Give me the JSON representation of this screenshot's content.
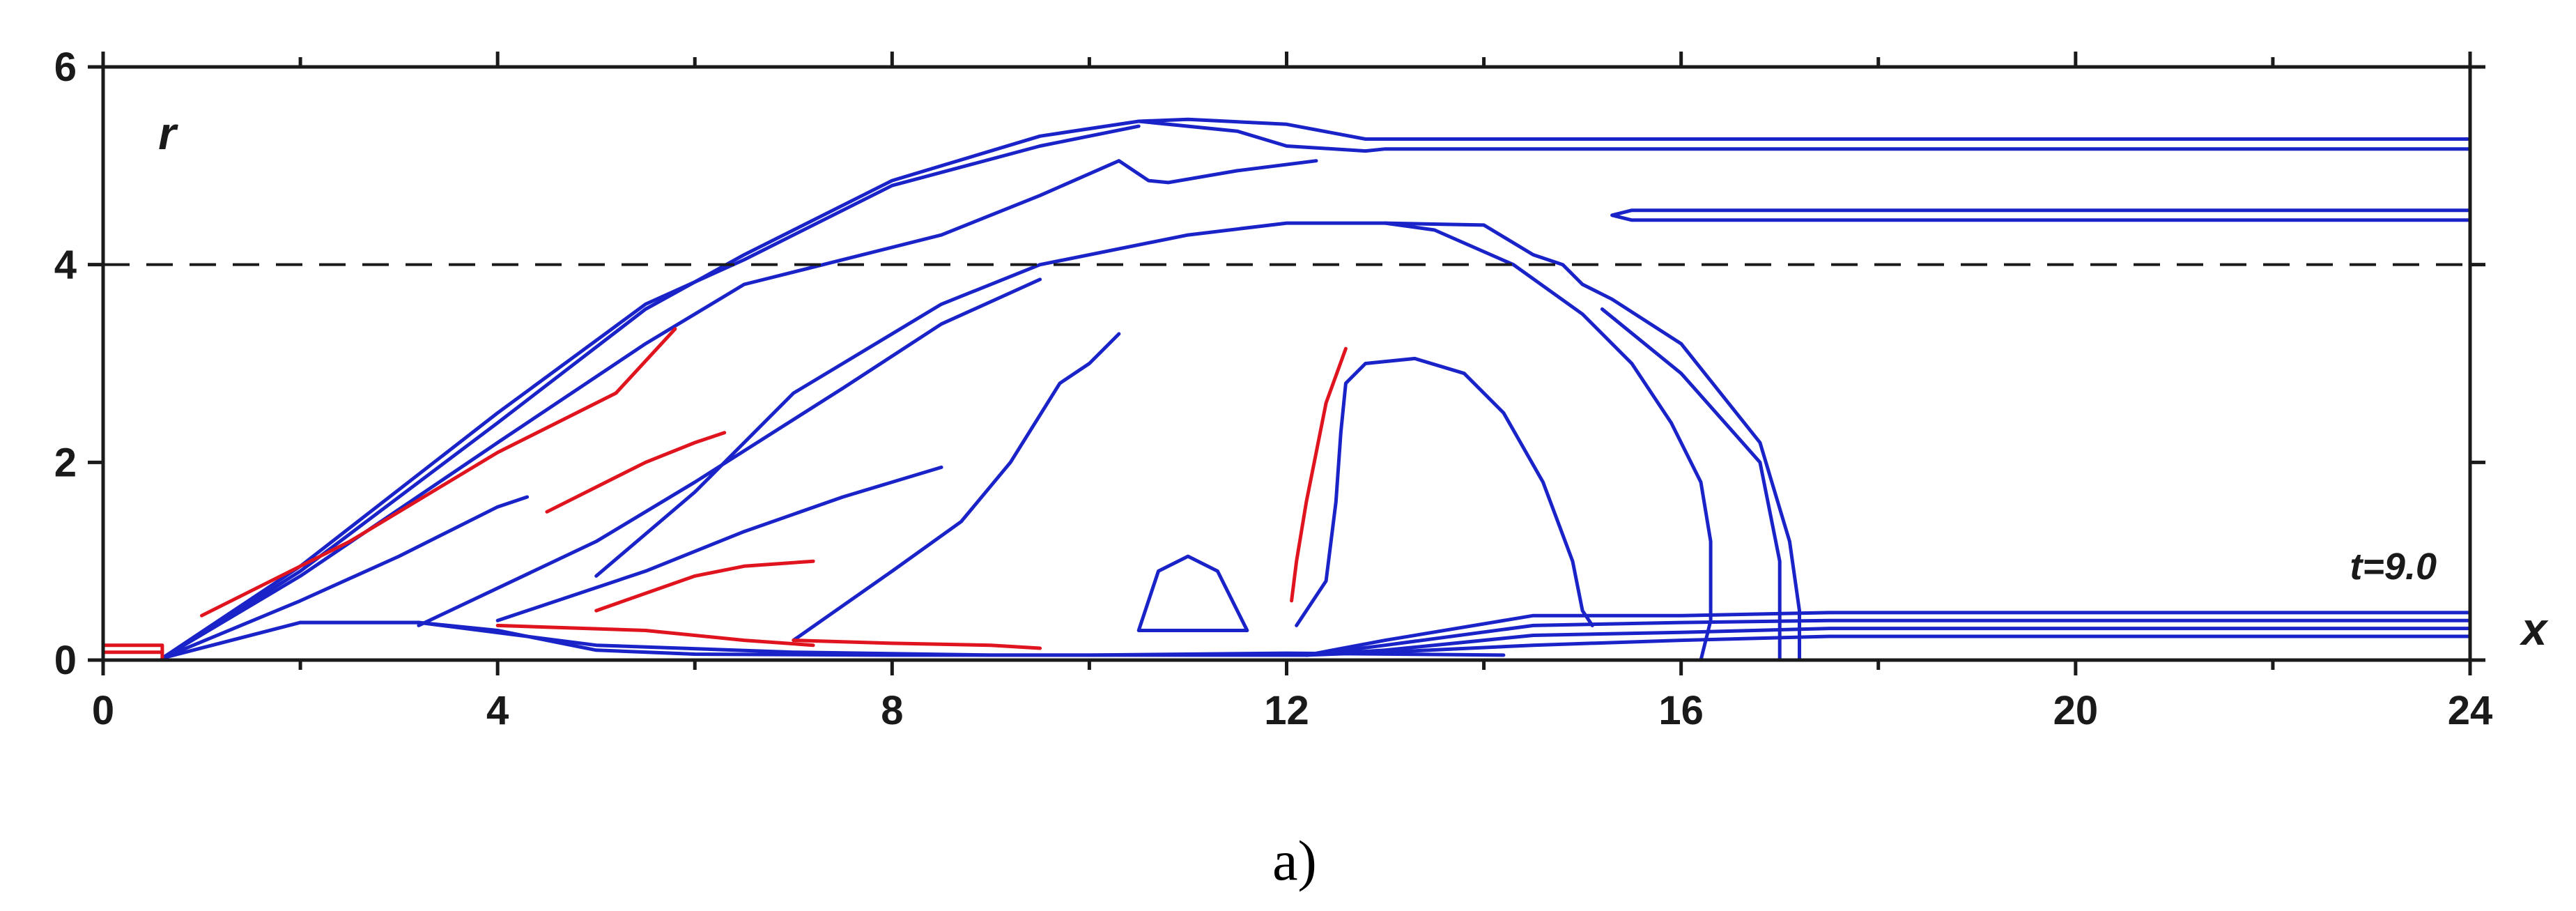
{
  "chart_data": {
    "type": "contour",
    "xlabel": "x",
    "ylabel": "r",
    "annotation": "t=9.0",
    "caption": "a)",
    "xlim": [
      0,
      24
    ],
    "ylim": [
      0,
      6
    ],
    "xticks": [
      0,
      4,
      8,
      12,
      16,
      20,
      24
    ],
    "yticks": [
      0,
      2,
      4,
      6
    ],
    "reference_lines": [
      {
        "orientation": "horizontal",
        "r": 4.0,
        "style": "dashed"
      }
    ],
    "colors": {
      "primary_contours": "#1a23c8",
      "secondary_contours": "#e0141e",
      "axes": "#1a1a1a"
    },
    "blue_contours": [
      [
        [
          0.6,
          0.02
        ],
        [
          2.0,
          0.9
        ],
        [
          4.0,
          2.4
        ],
        [
          5.5,
          3.55
        ],
        [
          6.5,
          4.1
        ],
        [
          8.0,
          4.85
        ],
        [
          9.5,
          5.3
        ],
        [
          10.5,
          5.45
        ],
        [
          11.0,
          5.47
        ],
        [
          12.0,
          5.42
        ],
        [
          12.8,
          5.27
        ],
        [
          24.0,
          5.27
        ]
      ],
      [
        [
          24.0,
          5.17
        ],
        [
          13.0,
          5.17
        ],
        [
          12.8,
          5.15
        ],
        [
          12.0,
          5.2
        ],
        [
          11.5,
          5.35
        ],
        [
          10.5,
          5.45
        ]
      ],
      [
        [
          0.6,
          0.02
        ],
        [
          2.0,
          0.95
        ],
        [
          4.0,
          2.5
        ],
        [
          5.5,
          3.6
        ],
        [
          6.5,
          4.05
        ],
        [
          8.0,
          4.8
        ],
        [
          9.5,
          5.2
        ],
        [
          10.5,
          5.4
        ]
      ],
      [
        [
          24.0,
          4.55
        ],
        [
          15.5,
          4.55
        ],
        [
          15.3,
          4.5
        ],
        [
          15.5,
          4.45
        ],
        [
          24.0,
          4.45
        ]
      ],
      [
        [
          0.6,
          0.02
        ],
        [
          2.0,
          0.85
        ],
        [
          4.0,
          2.2
        ],
        [
          5.5,
          3.2
        ],
        [
          6.5,
          3.8
        ],
        [
          7.5,
          4.05
        ],
        [
          8.5,
          4.3
        ],
        [
          9.5,
          4.7
        ],
        [
          10.3,
          5.05
        ],
        [
          10.6,
          4.85
        ],
        [
          10.8,
          4.83
        ],
        [
          11.5,
          4.95
        ],
        [
          12.3,
          5.05
        ]
      ],
      [
        [
          5.0,
          0.85
        ],
        [
          6.0,
          1.7
        ],
        [
          7.0,
          2.7
        ],
        [
          7.5,
          3.0
        ],
        [
          8.5,
          3.6
        ],
        [
          9.5,
          4.0
        ],
        [
          11.0,
          4.3
        ],
        [
          12.0,
          4.42
        ],
        [
          13.0,
          4.42
        ],
        [
          14.0,
          4.4
        ],
        [
          14.5,
          4.1
        ],
        [
          14.8,
          4.0
        ],
        [
          15.0,
          3.8
        ],
        [
          15.3,
          3.65
        ],
        [
          16.0,
          3.2
        ],
        [
          16.8,
          2.2
        ],
        [
          17.1,
          1.2
        ],
        [
          17.2,
          0.5
        ],
        [
          17.2,
          0.0
        ]
      ],
      [
        [
          16.2,
          0.0
        ],
        [
          16.3,
          0.4
        ],
        [
          16.3,
          1.2
        ],
        [
          16.2,
          1.8
        ],
        [
          15.9,
          2.4
        ],
        [
          15.5,
          3.0
        ],
        [
          15.0,
          3.5
        ],
        [
          14.3,
          4.0
        ],
        [
          13.5,
          4.35
        ],
        [
          13.0,
          4.42
        ]
      ],
      [
        [
          15.2,
          3.55
        ],
        [
          16.0,
          2.9
        ],
        [
          16.8,
          2.0
        ],
        [
          17.0,
          1.0
        ],
        [
          17.0,
          0.3
        ],
        [
          17.0,
          0.0
        ]
      ],
      [
        [
          3.2,
          0.35
        ],
        [
          5.0,
          1.2
        ],
        [
          6.0,
          1.8
        ],
        [
          7.5,
          2.75
        ],
        [
          8.5,
          3.4
        ],
        [
          9.5,
          3.85
        ]
      ],
      [
        [
          7.0,
          0.2
        ],
        [
          8.0,
          0.9
        ],
        [
          8.7,
          1.4
        ],
        [
          9.2,
          2.0
        ],
        [
          9.7,
          2.8
        ],
        [
          10.0,
          3.0
        ],
        [
          10.3,
          3.3
        ]
      ],
      [
        [
          4.0,
          0.4
        ],
        [
          5.5,
          0.9
        ],
        [
          6.5,
          1.3
        ],
        [
          7.5,
          1.65
        ],
        [
          8.5,
          1.95
        ]
      ],
      [
        [
          10.5,
          0.3
        ],
        [
          10.7,
          0.9
        ],
        [
          11.0,
          1.05
        ],
        [
          11.3,
          0.9
        ],
        [
          11.5,
          0.5
        ],
        [
          11.6,
          0.3
        ],
        [
          10.5,
          0.3
        ]
      ],
      [
        [
          12.1,
          0.35
        ],
        [
          12.4,
          0.8
        ],
        [
          12.5,
          1.6
        ],
        [
          12.55,
          2.3
        ],
        [
          12.6,
          2.8
        ],
        [
          12.8,
          3.0
        ],
        [
          13.3,
          3.05
        ],
        [
          13.8,
          2.9
        ],
        [
          14.2,
          2.5
        ],
        [
          14.6,
          1.8
        ],
        [
          14.9,
          1.0
        ],
        [
          15.0,
          0.5
        ],
        [
          15.1,
          0.35
        ]
      ],
      [
        [
          12.2,
          0.05
        ],
        [
          13.0,
          0.2
        ],
        [
          14.5,
          0.45
        ],
        [
          16.0,
          0.45
        ],
        [
          17.5,
          0.48
        ],
        [
          24.0,
          0.48
        ]
      ],
      [
        [
          12.2,
          0.05
        ],
        [
          13.0,
          0.15
        ],
        [
          14.5,
          0.35
        ],
        [
          16.0,
          0.38
        ],
        [
          17.5,
          0.4
        ],
        [
          24.0,
          0.4
        ]
      ],
      [
        [
          12.2,
          0.05
        ],
        [
          13.0,
          0.1
        ],
        [
          14.5,
          0.25
        ],
        [
          16.0,
          0.28
        ],
        [
          17.5,
          0.32
        ],
        [
          24.0,
          0.32
        ]
      ],
      [
        [
          12.2,
          0.05
        ],
        [
          13.0,
          0.08
        ],
        [
          14.5,
          0.15
        ],
        [
          16.0,
          0.2
        ],
        [
          17.5,
          0.24
        ],
        [
          24.0,
          0.24
        ]
      ],
      [
        [
          3.2,
          0.38
        ],
        [
          5.0,
          0.15
        ],
        [
          7.0,
          0.08
        ],
        [
          9.0,
          0.05
        ],
        [
          11.0,
          0.05
        ],
        [
          12.2,
          0.05
        ]
      ],
      [
        [
          2.0,
          0.38
        ],
        [
          3.2,
          0.38
        ],
        [
          4.0,
          0.3
        ],
        [
          5.0,
          0.1
        ],
        [
          6.0,
          0.06
        ],
        [
          8.0,
          0.05
        ],
        [
          10.0,
          0.05
        ],
        [
          12.0,
          0.07
        ],
        [
          14.2,
          0.05
        ]
      ],
      [
        [
          0.6,
          0.02
        ],
        [
          2.0,
          0.38
        ],
        [
          3.2,
          0.38
        ]
      ],
      [
        [
          0.6,
          0.02
        ],
        [
          2.0,
          0.6
        ],
        [
          3.0,
          1.05
        ],
        [
          4.0,
          1.55
        ],
        [
          4.3,
          1.65
        ]
      ]
    ],
    "red_contours": [
      [
        [
          0.0,
          0.15
        ],
        [
          0.6,
          0.15
        ],
        [
          0.6,
          0.02
        ]
      ],
      [
        [
          0.0,
          0.08
        ],
        [
          0.6,
          0.08
        ]
      ],
      [
        [
          12.6,
          3.15
        ],
        [
          12.4,
          2.6
        ],
        [
          12.3,
          2.1
        ],
        [
          12.2,
          1.6
        ],
        [
          12.1,
          1.0
        ],
        [
          12.05,
          0.6
        ]
      ],
      [
        [
          1.0,
          0.45
        ],
        [
          2.5,
          1.2
        ],
        [
          4.0,
          2.1
        ],
        [
          5.2,
          2.7
        ],
        [
          5.8,
          3.35
        ]
      ],
      [
        [
          4.5,
          1.5
        ],
        [
          5.5,
          2.0
        ],
        [
          6.0,
          2.2
        ],
        [
          6.3,
          2.3
        ]
      ],
      [
        [
          4.0,
          0.35
        ],
        [
          5.5,
          0.3
        ],
        [
          6.5,
          0.2
        ],
        [
          7.2,
          0.15
        ]
      ],
      [
        [
          5.0,
          0.5
        ],
        [
          6.0,
          0.85
        ],
        [
          6.5,
          0.95
        ],
        [
          7.2,
          1.0
        ]
      ],
      [
        [
          7.0,
          0.2
        ],
        [
          8.0,
          0.17
        ],
        [
          9.0,
          0.15
        ],
        [
          9.5,
          0.12
        ]
      ]
    ]
  }
}
